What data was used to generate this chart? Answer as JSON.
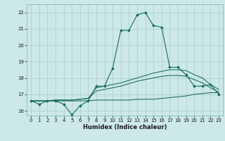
{
  "xlabel": "Humidex (Indice chaleur)",
  "bg_color": "#cce8e8",
  "grid_color": "#aacccc",
  "line_color": "#1a6b5a",
  "xlim": [
    -0.5,
    23.5
  ],
  "ylim": [
    15.7,
    22.5
  ],
  "yticks": [
    16,
    17,
    18,
    19,
    20,
    21,
    22
  ],
  "xticks": [
    0,
    1,
    2,
    3,
    4,
    5,
    6,
    7,
    8,
    9,
    10,
    11,
    12,
    13,
    14,
    15,
    16,
    17,
    18,
    19,
    20,
    21,
    22,
    23
  ],
  "series": [
    {
      "x": [
        0,
        1,
        2,
        3,
        4,
        5,
        6,
        7,
        8,
        9,
        10,
        11,
        12,
        13,
        14,
        15,
        16,
        17,
        18,
        19,
        20,
        21,
        22,
        23
      ],
      "y": [
        16.6,
        16.4,
        16.6,
        16.6,
        16.4,
        15.75,
        16.3,
        16.6,
        17.5,
        17.5,
        18.6,
        20.9,
        20.9,
        21.85,
        22.0,
        21.2,
        21.1,
        18.65,
        18.65,
        18.2,
        17.5,
        17.5,
        17.6,
        17.0
      ],
      "marker": true
    },
    {
      "x": [
        0,
        1,
        2,
        3,
        4,
        5,
        6,
        7,
        8,
        9,
        10,
        11,
        12,
        13,
        14,
        15,
        16,
        17,
        18,
        19,
        20,
        21,
        22,
        23
      ],
      "y": [
        16.6,
        16.6,
        16.6,
        16.65,
        16.65,
        16.65,
        16.7,
        16.75,
        17.4,
        17.5,
        17.6,
        17.7,
        17.85,
        18.0,
        18.15,
        18.3,
        18.4,
        18.5,
        18.5,
        18.45,
        18.2,
        18.0,
        17.6,
        17.3
      ],
      "marker": false
    },
    {
      "x": [
        0,
        1,
        2,
        3,
        4,
        5,
        6,
        7,
        8,
        9,
        10,
        11,
        12,
        13,
        14,
        15,
        16,
        17,
        18,
        19,
        20,
        21,
        22,
        23
      ],
      "y": [
        16.6,
        16.6,
        16.6,
        16.65,
        16.65,
        16.65,
        16.7,
        16.75,
        17.2,
        17.3,
        17.4,
        17.5,
        17.65,
        17.8,
        17.9,
        18.0,
        18.1,
        18.15,
        18.15,
        18.1,
        17.9,
        17.7,
        17.4,
        17.15
      ],
      "marker": false
    },
    {
      "x": [
        0,
        1,
        2,
        3,
        4,
        5,
        6,
        7,
        8,
        9,
        10,
        11,
        12,
        13,
        14,
        15,
        16,
        17,
        18,
        19,
        20,
        21,
        22,
        23
      ],
      "y": [
        16.6,
        16.6,
        16.6,
        16.6,
        16.6,
        16.6,
        16.6,
        16.6,
        16.65,
        16.65,
        16.65,
        16.65,
        16.65,
        16.7,
        16.7,
        16.7,
        16.75,
        16.8,
        16.85,
        16.9,
        17.0,
        17.05,
        17.1,
        17.1
      ],
      "marker": false
    }
  ]
}
